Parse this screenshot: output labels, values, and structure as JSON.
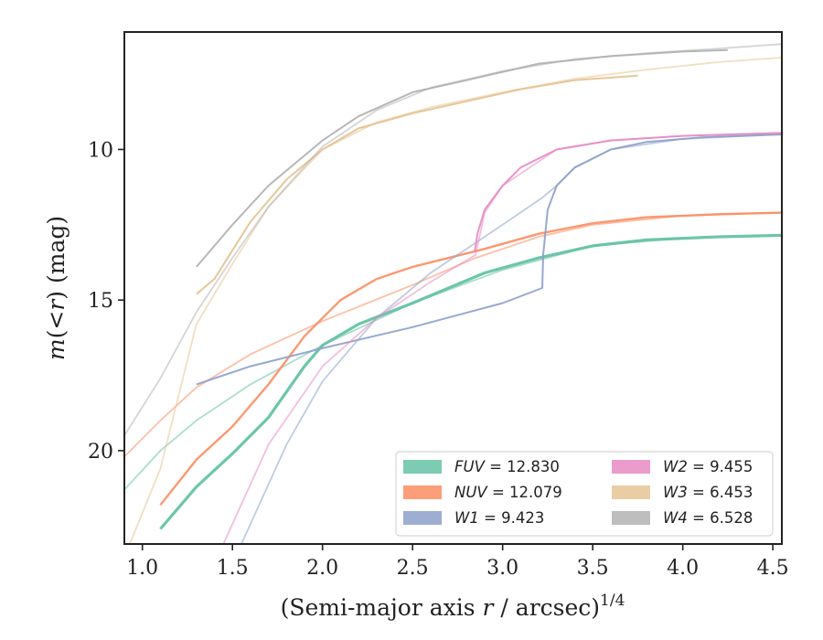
{
  "chart_data": {
    "type": "line",
    "xlabel_prefix": "(Semi-major axis ",
    "xlabel_var": "r",
    "xlabel_mid": " / arcsec)",
    "xlabel_sup": "1/4",
    "ylabel_var1": "m",
    "ylabel_mid": "(<",
    "ylabel_var2": "r",
    "ylabel_suffix": ") (mag)",
    "xlim": [
      0.9,
      4.55
    ],
    "ylim": [
      23.1,
      6.1
    ],
    "y_inverted": true,
    "grid": false,
    "legend_position": "lower-right",
    "x_ticks": [
      {
        "v": 1.0,
        "label": "1.0"
      },
      {
        "v": 1.5,
        "label": "1.5"
      },
      {
        "v": 2.0,
        "label": "2.0"
      },
      {
        "v": 2.5,
        "label": "2.5"
      },
      {
        "v": 3.0,
        "label": "3.0"
      },
      {
        "v": 3.5,
        "label": "3.5"
      },
      {
        "v": 4.0,
        "label": "4.0"
      },
      {
        "v": 4.5,
        "label": "4.5"
      }
    ],
    "y_ticks": [
      {
        "v": 10,
        "label": "10"
      },
      {
        "v": 15,
        "label": "15"
      },
      {
        "v": 20,
        "label": "20"
      }
    ],
    "legend": [
      {
        "band": "FUV",
        "value": "= 12.830",
        "color": "#66c2a5"
      },
      {
        "band": "NUV",
        "value": "= 12.079",
        "color": "#fc8d62"
      },
      {
        "band": "W1",
        "value": "= 9.423",
        "color": "#8da0cb"
      },
      {
        "band": "W2",
        "value": "= 9.455",
        "color": "#e78ac3"
      },
      {
        "band": "W3",
        "value": "= 6.453",
        "color": "#e5c494"
      },
      {
        "band": "W4",
        "value": "= 6.528",
        "color": "#b3b3b3"
      }
    ],
    "series": [
      {
        "name": "FUV",
        "color": "#66c2a5",
        "curves": [
          {
            "width": 3.2,
            "opacity": 0.95,
            "points": [
              [
                1.1,
                22.6
              ],
              [
                1.3,
                21.2
              ],
              [
                1.5,
                20.1
              ],
              [
                1.7,
                18.9
              ],
              [
                1.9,
                17.2
              ],
              [
                2.0,
                16.5
              ],
              [
                2.2,
                15.8
              ],
              [
                2.5,
                15.1
              ],
              [
                2.7,
                14.6
              ],
              [
                2.9,
                14.1
              ],
              [
                3.2,
                13.6
              ],
              [
                3.5,
                13.2
              ],
              [
                3.8,
                13.0
              ],
              [
                4.2,
                12.9
              ],
              [
                4.55,
                12.85
              ]
            ]
          },
          {
            "width": 1.8,
            "opacity": 0.55,
            "points": [
              [
                0.9,
                21.3
              ],
              [
                1.1,
                20.0
              ],
              [
                1.3,
                19.0
              ],
              [
                1.6,
                17.8
              ],
              [
                2.0,
                16.5
              ],
              [
                2.5,
                15.1
              ],
              [
                3.0,
                14.0
              ],
              [
                3.5,
                13.2
              ],
              [
                4.0,
                12.95
              ]
            ]
          }
        ]
      },
      {
        "name": "NUV",
        "color": "#fc8d62",
        "curves": [
          {
            "width": 2.4,
            "opacity": 0.9,
            "points": [
              [
                1.1,
                21.8
              ],
              [
                1.3,
                20.3
              ],
              [
                1.5,
                19.2
              ],
              [
                1.7,
                17.8
              ],
              [
                1.9,
                16.2
              ],
              [
                2.1,
                15.0
              ],
              [
                2.3,
                14.3
              ],
              [
                2.5,
                13.9
              ],
              [
                2.7,
                13.6
              ],
              [
                2.9,
                13.3
              ],
              [
                3.2,
                12.8
              ],
              [
                3.5,
                12.45
              ],
              [
                3.8,
                12.25
              ],
              [
                4.2,
                12.15
              ],
              [
                4.55,
                12.1
              ]
            ]
          },
          {
            "width": 1.8,
            "opacity": 0.55,
            "points": [
              [
                0.9,
                20.2
              ],
              [
                1.1,
                19.0
              ],
              [
                1.3,
                17.9
              ],
              [
                1.6,
                16.8
              ],
              [
                2.0,
                15.7
              ],
              [
                2.5,
                14.5
              ],
              [
                2.85,
                13.6
              ],
              [
                3.2,
                12.9
              ],
              [
                3.5,
                12.5
              ],
              [
                4.0,
                12.2
              ],
              [
                4.55,
                12.1
              ]
            ]
          }
        ]
      },
      {
        "name": "W1",
        "color": "#8da0cb",
        "curves": [
          {
            "width": 2.0,
            "opacity": 0.9,
            "points": [
              [
                1.3,
                17.8
              ],
              [
                1.6,
                17.2
              ],
              [
                2.0,
                16.6
              ],
              [
                2.5,
                15.9
              ],
              [
                3.0,
                15.1
              ],
              [
                3.22,
                14.6
              ],
              [
                3.225,
                13.5
              ],
              [
                3.25,
                12.0
              ],
              [
                3.3,
                11.2
              ],
              [
                3.4,
                10.6
              ],
              [
                3.6,
                10.0
              ],
              [
                3.8,
                9.75
              ],
              [
                4.1,
                9.6
              ],
              [
                4.55,
                9.5
              ]
            ]
          },
          {
            "width": 1.8,
            "opacity": 0.55,
            "points": [
              [
                1.55,
                23.1
              ],
              [
                1.8,
                19.8
              ],
              [
                2.0,
                17.7
              ],
              [
                2.3,
                15.6
              ],
              [
                2.6,
                14.1
              ],
              [
                3.0,
                12.5
              ],
              [
                3.22,
                11.6
              ],
              [
                3.3,
                11.2
              ],
              [
                3.4,
                10.6
              ],
              [
                3.6,
                10.0
              ],
              [
                4.0,
                9.65
              ],
              [
                4.55,
                9.5
              ]
            ]
          }
        ]
      },
      {
        "name": "W2",
        "color": "#e78ac3",
        "curves": [
          {
            "width": 2.0,
            "opacity": 0.9,
            "points": [
              [
                2.845,
                13.4
              ],
              [
                2.86,
                12.8
              ],
              [
                2.9,
                12.0
              ],
              [
                3.0,
                11.2
              ],
              [
                3.1,
                10.6
              ],
              [
                3.3,
                10.0
              ],
              [
                3.6,
                9.7
              ],
              [
                4.0,
                9.55
              ],
              [
                4.55,
                9.45
              ]
            ]
          },
          {
            "width": 1.8,
            "opacity": 0.55,
            "points": [
              [
                1.45,
                23.1
              ],
              [
                1.7,
                19.8
              ],
              [
                2.0,
                17.2
              ],
              [
                2.3,
                15.6
              ],
              [
                2.6,
                14.4
              ],
              [
                2.85,
                13.5
              ],
              [
                2.9,
                12.1
              ],
              [
                3.0,
                11.2
              ],
              [
                3.3,
                10.0
              ],
              [
                3.6,
                9.7
              ],
              [
                4.0,
                9.55
              ],
              [
                4.55,
                9.45
              ]
            ]
          }
        ]
      },
      {
        "name": "W3",
        "color": "#e5c494",
        "curves": [
          {
            "width": 2.0,
            "opacity": 0.95,
            "points": [
              [
                1.3,
                14.8
              ],
              [
                1.4,
                14.3
              ],
              [
                1.6,
                12.4
              ],
              [
                1.8,
                11.0
              ],
              [
                2.0,
                10.0
              ],
              [
                2.2,
                9.3
              ],
              [
                2.5,
                8.8
              ],
              [
                2.8,
                8.4
              ],
              [
                3.1,
                8.0
              ],
              [
                3.4,
                7.7
              ],
              [
                3.75,
                7.55
              ]
            ]
          },
          {
            "width": 1.8,
            "opacity": 0.55,
            "points": [
              [
                0.93,
                23.1
              ],
              [
                1.1,
                20.6
              ],
              [
                1.3,
                15.8
              ],
              [
                1.5,
                13.8
              ],
              [
                1.7,
                11.9
              ],
              [
                2.0,
                10.0
              ],
              [
                2.3,
                9.1
              ],
              [
                2.6,
                8.6
              ],
              [
                3.0,
                8.1
              ],
              [
                3.4,
                7.65
              ],
              [
                3.8,
                7.35
              ],
              [
                4.2,
                7.1
              ],
              [
                4.55,
                6.95
              ]
            ]
          }
        ]
      },
      {
        "name": "W4",
        "color": "#b3b3b3",
        "curves": [
          {
            "width": 2.0,
            "opacity": 0.95,
            "points": [
              [
                1.3,
                13.9
              ],
              [
                1.5,
                12.5
              ],
              [
                1.7,
                11.2
              ],
              [
                2.0,
                9.7
              ],
              [
                2.2,
                8.9
              ],
              [
                2.5,
                8.1
              ],
              [
                2.8,
                7.7
              ],
              [
                3.2,
                7.15
              ],
              [
                3.6,
                6.9
              ],
              [
                4.0,
                6.75
              ],
              [
                4.25,
                6.7
              ]
            ]
          },
          {
            "width": 1.8,
            "opacity": 0.55,
            "points": [
              [
                0.9,
                19.5
              ],
              [
                1.1,
                17.6
              ],
              [
                1.3,
                15.4
              ],
              [
                1.5,
                13.6
              ],
              [
                1.7,
                11.9
              ],
              [
                2.0,
                9.9
              ],
              [
                2.3,
                8.7
              ],
              [
                2.6,
                7.95
              ],
              [
                3.0,
                7.4
              ],
              [
                3.4,
                7.0
              ],
              [
                3.8,
                6.8
              ],
              [
                4.2,
                6.65
              ],
              [
                4.55,
                6.5
              ]
            ]
          }
        ]
      }
    ]
  }
}
